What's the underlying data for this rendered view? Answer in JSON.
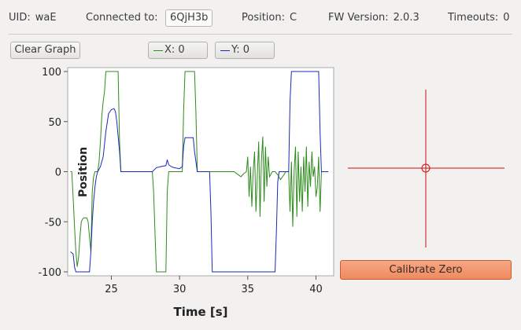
{
  "status": {
    "uid_label": "UID:",
    "uid_value": "waE",
    "connected_label": "Connected to:",
    "connected_value": "6QjH3b",
    "position_label": "Position:",
    "position_value": "C",
    "fw_label": "FW Version:",
    "fw_value": "2.0.3",
    "timeouts_label": "Timeouts:",
    "timeouts_value": "0"
  },
  "toolbar": {
    "clear_label": "Clear Graph",
    "legend_x": "X: 0",
    "legend_y": "Y: 0"
  },
  "colors": {
    "x_series": "#2e8b1e",
    "y_series": "#1a2bb8",
    "crosshair": "#cc1010",
    "calibrate": "#ef8a61"
  },
  "calibrate_label": "Calibrate Zero",
  "crosshair": {
    "x": 0,
    "y": 0
  },
  "chart_data": {
    "type": "line",
    "xlabel": "Time [s]",
    "ylabel": "Position",
    "xlim": [
      21.8,
      41.3
    ],
    "ylim": [
      -100,
      100
    ],
    "xticks": [
      25,
      30,
      35,
      40
    ],
    "yticks": [
      100,
      50,
      0,
      -50,
      -100
    ],
    "xtick_labels": [
      "25",
      "30",
      "35",
      "40"
    ],
    "ytick_labels": [
      "100",
      "50",
      "0",
      "-50",
      "-100"
    ],
    "series": [
      {
        "name": "X",
        "color": "#2e8b1e",
        "points": [
          [
            22.0,
            0
          ],
          [
            22.1,
            0
          ],
          [
            22.2,
            -25
          ],
          [
            22.3,
            -55
          ],
          [
            22.4,
            -80
          ],
          [
            22.5,
            -95
          ],
          [
            22.6,
            -85
          ],
          [
            22.7,
            -65
          ],
          [
            22.8,
            -50
          ],
          [
            22.9,
            -47
          ],
          [
            23.0,
            -46
          ],
          [
            23.2,
            -46
          ],
          [
            23.3,
            -50
          ],
          [
            23.4,
            -65
          ],
          [
            23.5,
            -80
          ],
          [
            23.6,
            -20
          ],
          [
            23.7,
            -5
          ],
          [
            23.8,
            0
          ],
          [
            24.0,
            0
          ],
          [
            24.1,
            10
          ],
          [
            24.2,
            30
          ],
          [
            24.3,
            55
          ],
          [
            24.4,
            70
          ],
          [
            24.5,
            80
          ],
          [
            24.6,
            100
          ],
          [
            25.4,
            100
          ],
          [
            25.5,
            100
          ],
          [
            25.6,
            30
          ],
          [
            25.7,
            0
          ],
          [
            26.0,
            0
          ],
          [
            28.0,
            0
          ],
          [
            28.1,
            -20
          ],
          [
            28.2,
            -60
          ],
          [
            28.3,
            -100
          ],
          [
            28.9,
            -100
          ],
          [
            29.0,
            -100
          ],
          [
            29.1,
            -20
          ],
          [
            29.2,
            0
          ],
          [
            30.0,
            0
          ],
          [
            30.2,
            0
          ],
          [
            30.3,
            60
          ],
          [
            30.4,
            100
          ],
          [
            31.1,
            100
          ],
          [
            31.2,
            60
          ],
          [
            31.3,
            0
          ],
          [
            31.5,
            0
          ],
          [
            32.0,
            0
          ],
          [
            34.0,
            0
          ],
          [
            34.3,
            -3
          ],
          [
            34.5,
            -5
          ],
          [
            34.7,
            -2
          ],
          [
            34.9,
            0
          ],
          [
            35.0,
            15
          ],
          [
            35.1,
            -25
          ],
          [
            35.2,
            5
          ],
          [
            35.3,
            -35
          ],
          [
            35.4,
            0
          ],
          [
            35.5,
            20
          ],
          [
            35.6,
            -40
          ],
          [
            35.7,
            -5
          ],
          [
            35.8,
            30
          ],
          [
            35.9,
            -45
          ],
          [
            36.0,
            10
          ],
          [
            36.1,
            35
          ],
          [
            36.2,
            -30
          ],
          [
            36.3,
            25
          ],
          [
            36.4,
            -15
          ],
          [
            36.5,
            15
          ],
          [
            36.6,
            -5
          ],
          [
            36.8,
            0
          ],
          [
            37.0,
            0
          ],
          [
            37.2,
            -3
          ],
          [
            37.4,
            -8
          ],
          [
            37.6,
            -4
          ],
          [
            37.8,
            0
          ],
          [
            38.0,
            0
          ],
          [
            38.1,
            -40
          ],
          [
            38.2,
            10
          ],
          [
            38.3,
            -55
          ],
          [
            38.4,
            0
          ],
          [
            38.5,
            25
          ],
          [
            38.6,
            -45
          ],
          [
            38.7,
            20
          ],
          [
            38.8,
            -30
          ],
          [
            38.9,
            5
          ],
          [
            39.0,
            -40
          ],
          [
            39.1,
            15
          ],
          [
            39.2,
            -20
          ],
          [
            39.3,
            25
          ],
          [
            39.4,
            -35
          ],
          [
            39.5,
            10
          ],
          [
            39.6,
            -15
          ],
          [
            39.7,
            20
          ],
          [
            39.8,
            -5
          ],
          [
            39.9,
            5
          ],
          [
            40.0,
            -25
          ],
          [
            40.1,
            -15
          ],
          [
            40.2,
            15
          ],
          [
            40.3,
            -40
          ],
          [
            40.4,
            0
          ],
          [
            40.6,
            0
          ]
        ]
      },
      {
        "name": "Y",
        "color": "#1a2bb8",
        "points": [
          [
            22.0,
            -80
          ],
          [
            22.2,
            -82
          ],
          [
            22.3,
            -95
          ],
          [
            22.4,
            -100
          ],
          [
            23.4,
            -100
          ],
          [
            23.5,
            -80
          ],
          [
            23.6,
            -50
          ],
          [
            23.7,
            -30
          ],
          [
            23.8,
            -15
          ],
          [
            23.9,
            -5
          ],
          [
            24.0,
            0
          ],
          [
            24.2,
            5
          ],
          [
            24.4,
            15
          ],
          [
            24.6,
            40
          ],
          [
            24.8,
            58
          ],
          [
            25.0,
            62
          ],
          [
            25.2,
            63
          ],
          [
            25.3,
            60
          ],
          [
            25.4,
            50
          ],
          [
            25.6,
            20
          ],
          [
            25.7,
            0
          ],
          [
            26.0,
            0
          ],
          [
            28.0,
            0
          ],
          [
            28.3,
            4
          ],
          [
            28.6,
            5
          ],
          [
            29.0,
            6
          ],
          [
            29.1,
            12
          ],
          [
            29.2,
            7
          ],
          [
            29.4,
            5
          ],
          [
            29.6,
            4
          ],
          [
            30.0,
            3
          ],
          [
            30.2,
            5
          ],
          [
            30.3,
            25
          ],
          [
            30.4,
            34
          ],
          [
            31.0,
            34
          ],
          [
            31.1,
            20
          ],
          [
            31.3,
            0
          ],
          [
            32.0,
            0
          ],
          [
            32.2,
            0
          ],
          [
            32.3,
            -40
          ],
          [
            32.4,
            -100
          ],
          [
            37.0,
            -100
          ],
          [
            37.1,
            -60
          ],
          [
            37.2,
            -10
          ],
          [
            37.3,
            0
          ],
          [
            38.0,
            0
          ],
          [
            38.1,
            70
          ],
          [
            38.2,
            100
          ],
          [
            40.2,
            100
          ],
          [
            40.3,
            40
          ],
          [
            40.4,
            0
          ],
          [
            40.9,
            0
          ]
        ]
      }
    ]
  }
}
